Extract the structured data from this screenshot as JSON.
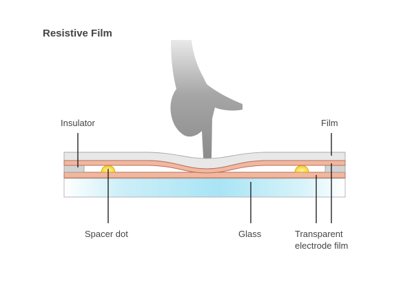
{
  "title": "Resistive Film",
  "labels": {
    "insulator": "Insulator",
    "film": "Film",
    "spacer_dot": "Spacer dot",
    "glass": "Glass",
    "transparent_electrode_line1": "Transparent",
    "transparent_electrode_line2": "electrode film"
  },
  "colors": {
    "hand": "#8e8e8e",
    "film_top": "#e8e8e8",
    "electrode": "#f2b79f",
    "spacer_dot": "#f3cd22",
    "glass": "#bdebf7",
    "text": "#444444"
  },
  "icons": {
    "hand": "pointing-finger-icon"
  }
}
